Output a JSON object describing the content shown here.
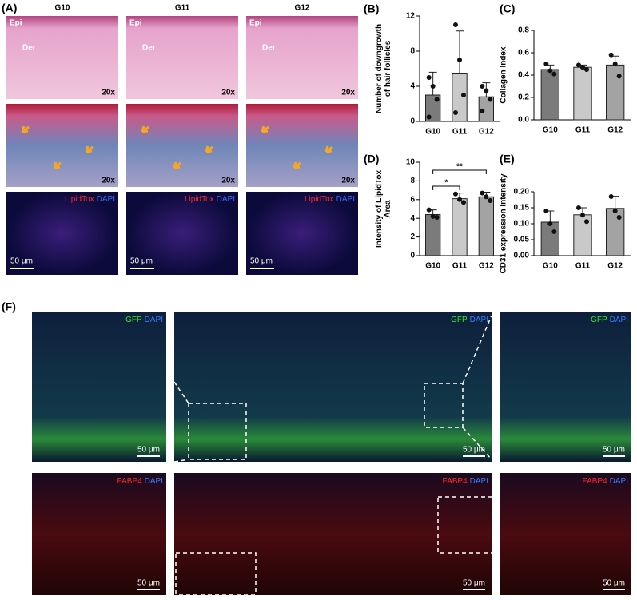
{
  "panel_a": {
    "label": "(A)",
    "columns": [
      "G10",
      "G11",
      "G12"
    ],
    "he": [
      {
        "epi": "Epi",
        "der": "Der",
        "mag": "20x"
      },
      {
        "epi": "Epi",
        "der": "Der",
        "mag": "20x"
      },
      {
        "epi": "Epi",
        "der": "Der",
        "mag": "20x"
      }
    ],
    "masson": [
      "20x",
      "20x",
      "20x"
    ],
    "lipid": [
      {
        "stain": "LipidTox",
        "dapi": "DAPI",
        "scale": "50 μm"
      },
      {
        "stain": "LipidTox",
        "dapi": "DAPI",
        "scale": "50 μm"
      },
      {
        "stain": "LipidTox",
        "dapi": "DAPI",
        "scale": "50 μm"
      }
    ]
  },
  "chart_data": [
    {
      "type": "bar",
      "panel": "(B)",
      "ylabel": [
        "Number of downgrowth",
        "of hair follicles"
      ],
      "categories": [
        "G10",
        "G11",
        "G12"
      ],
      "colors": [
        "#7b7b7b",
        "#c9c9c9",
        "#a3a3a3"
      ],
      "values": [
        3.0,
        5.5,
        2.8
      ],
      "errors": [
        2.6,
        4.8,
        1.6
      ],
      "points": [
        [
          5.0,
          4.0,
          2.5,
          0.5
        ],
        [
          11.0,
          7.0,
          3.0,
          1.0
        ],
        [
          4.0,
          3.5,
          2.5,
          1.2
        ]
      ],
      "ylim": [
        0,
        12
      ],
      "yticks": [
        0,
        4,
        8,
        12
      ]
    },
    {
      "type": "bar",
      "panel": "(C)",
      "ylabel": [
        "Collagen Index"
      ],
      "categories": [
        "G10",
        "G11",
        "G12"
      ],
      "colors": [
        "#7b7b7b",
        "#c9c9c9",
        "#a3a3a3"
      ],
      "values": [
        0.45,
        0.47,
        0.49
      ],
      "errors": [
        0.04,
        0.02,
        0.08
      ],
      "points": [
        [
          0.5,
          0.44,
          0.41
        ],
        [
          0.49,
          0.47,
          0.45
        ],
        [
          0.58,
          0.5,
          0.39
        ]
      ],
      "ylim": [
        0,
        0.8
      ],
      "yticks": [
        {
          "value": 0,
          "label": "0.0"
        },
        0.2,
        0.4,
        0.6,
        0.8
      ]
    },
    {
      "type": "bar",
      "panel": "(D)",
      "ylabel": [
        "Intensity of LipidTox",
        "Area"
      ],
      "categories": [
        "G10",
        "G11",
        "G12"
      ],
      "colors": [
        "#7b7b7b",
        "#c9c9c9",
        "#a3a3a3"
      ],
      "values": [
        4.4,
        6.1,
        6.3
      ],
      "errors": [
        0.5,
        0.6,
        0.5
      ],
      "points": [
        [
          4.9,
          4.2,
          4.1
        ],
        [
          6.6,
          6.0,
          5.7
        ],
        [
          6.7,
          6.3,
          5.9
        ]
      ],
      "ylim": [
        0,
        10
      ],
      "yticks": [
        0,
        2,
        4,
        6,
        8,
        10
      ],
      "significance": [
        {
          "pair": [
            "G10",
            "G11"
          ],
          "label": "*"
        },
        {
          "pair": [
            "G10",
            "G12"
          ],
          "label": "**"
        }
      ]
    },
    {
      "type": "bar",
      "panel": "(E)",
      "ylabel": [
        "CD31 expression Intensity"
      ],
      "categories": [
        "G10",
        "G11",
        "G12"
      ],
      "colors": [
        "#7b7b7b",
        "#c9c9c9",
        "#a3a3a3"
      ],
      "values": [
        0.105,
        0.128,
        0.148
      ],
      "errors": [
        0.035,
        0.022,
        0.038
      ],
      "points": [
        [
          0.14,
          0.1,
          0.075
        ],
        [
          0.15,
          0.127,
          0.107
        ],
        [
          0.185,
          0.14,
          0.12
        ]
      ],
      "ylim": [
        0,
        0.2
      ],
      "yticks": [
        {
          "value": 0,
          "label": "0.00"
        },
        {
          "value": 0.05,
          "label": "0.05"
        },
        {
          "value": 0.1,
          "label": "0.10"
        },
        {
          "value": 0.15,
          "label": "0.15"
        },
        {
          "value": 0.2,
          "label": "0.20"
        }
      ]
    }
  ],
  "panel_f": {
    "label": "(F)",
    "gfp": [
      {
        "stain": "GFP",
        "dapi": "DAPI",
        "scale": "50 μm"
      },
      {
        "stain": "GFP",
        "dapi": "DAPI",
        "scale": "50 μm"
      },
      {
        "stain": "GFP",
        "dapi": "DAPI",
        "scale": "50 μm"
      }
    ],
    "fabp4": [
      {
        "stain": "FABP4",
        "dapi": "DAPI",
        "scale": "50 μm"
      },
      {
        "stain": "FABP4",
        "dapi": "DAPI",
        "scale": "50 μm"
      },
      {
        "stain": "FABP4",
        "dapi": "DAPI",
        "scale": "50 μm"
      }
    ]
  }
}
